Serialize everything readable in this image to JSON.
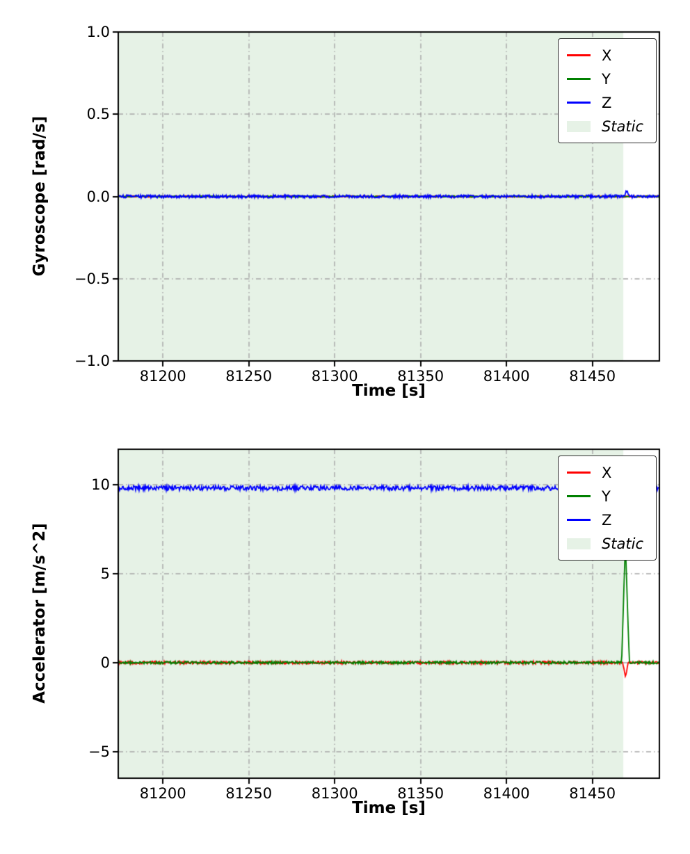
{
  "figure": {
    "background": "#ffffff"
  },
  "chart_data": [
    {
      "type": "line",
      "title": "",
      "xlabel": "Time [s]",
      "ylabel": "Gyroscope [rad/s]",
      "xlim": [
        81174,
        81489
      ],
      "ylim": [
        -1.0,
        1.0
      ],
      "xticks": [
        81200,
        81250,
        81300,
        81350,
        81400,
        81450
      ],
      "yticks": [
        -1.0,
        -0.5,
        0.0,
        0.5,
        1.0
      ],
      "ytick_decimals": 1,
      "grid": {
        "on": true,
        "style": "dash-dot",
        "color": "#a6a6a6"
      },
      "legend": {
        "position": "upper right"
      },
      "static_region": {
        "label": "Static",
        "xstart": 81174,
        "xend": 81468,
        "color": "#e6f2e6"
      },
      "series": [
        {
          "name": "X",
          "color": "#ff0000",
          "noise": 0.004,
          "points": [
            [
              81174,
              0.0
            ],
            [
              81489,
              0.0
            ]
          ]
        },
        {
          "name": "Y",
          "color": "#008000",
          "noise": 0.004,
          "points": [
            [
              81174,
              0.0
            ],
            [
              81489,
              0.0
            ]
          ]
        },
        {
          "name": "Z",
          "color": "#0000ff",
          "noise": 0.009,
          "points": [
            [
              81174,
              0.0
            ],
            [
              81468.5,
              0.0
            ],
            [
              81470,
              0.035
            ],
            [
              81471.5,
              0.0
            ],
            [
              81489,
              0.0
            ]
          ]
        }
      ]
    },
    {
      "type": "line",
      "title": "",
      "xlabel": "Time [s]",
      "ylabel": "Accelerator [m/s^2]",
      "xlim": [
        81174,
        81489
      ],
      "ylim": [
        -6.5,
        12.0
      ],
      "xticks": [
        81200,
        81250,
        81300,
        81350,
        81400,
        81450
      ],
      "yticks": [
        -5,
        0,
        5,
        10
      ],
      "ytick_decimals": 0,
      "grid": {
        "on": true,
        "style": "dash-dot",
        "color": "#a6a6a6"
      },
      "legend": {
        "position": "upper right"
      },
      "static_region": {
        "label": "Static",
        "xstart": 81174,
        "xend": 81468,
        "color": "#e6f2e6"
      },
      "series": [
        {
          "name": "X",
          "color": "#ff0000",
          "noise": 0.08,
          "points": [
            [
              81174,
              0.0
            ],
            [
              81467.5,
              0.0
            ],
            [
              81469.2,
              -0.8
            ],
            [
              81471,
              0.0
            ],
            [
              81489,
              0.0
            ]
          ]
        },
        {
          "name": "Y",
          "color": "#008000",
          "noise": 0.07,
          "points": [
            [
              81174,
              0.0
            ],
            [
              81467,
              0.0
            ],
            [
              81469.2,
              6.8
            ],
            [
              81471.5,
              0.0
            ],
            [
              81489,
              0.0
            ]
          ]
        },
        {
          "name": "Z",
          "color": "#0000ff",
          "noise": 0.13,
          "points": [
            [
              81174,
              9.82
            ],
            [
              81489,
              9.82
            ]
          ]
        }
      ]
    }
  ]
}
